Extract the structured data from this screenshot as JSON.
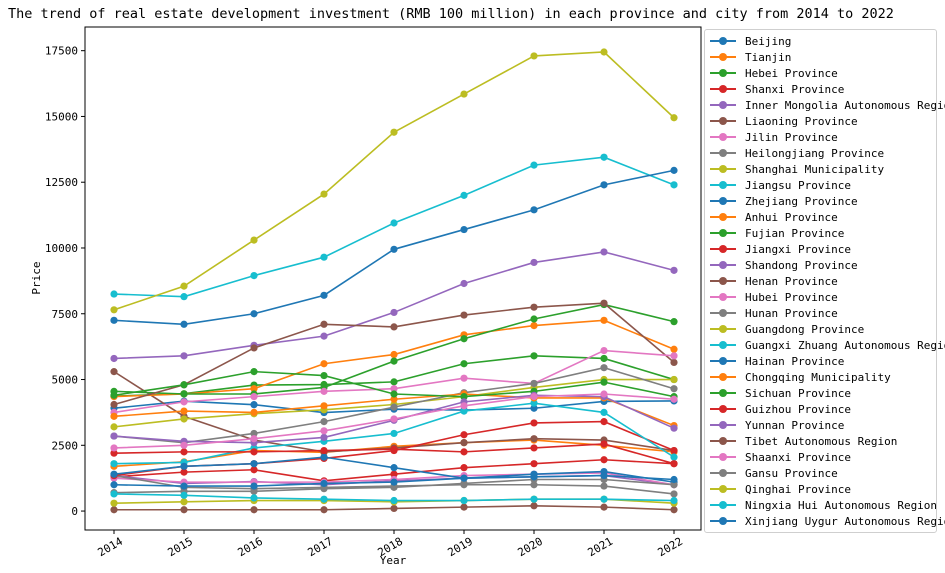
{
  "chart_data": {
    "type": "line",
    "title": "The trend of real estate development investment (RMB 100 million) in each province and city from 2014 to 2022",
    "xlabel": "Year",
    "ylabel": "Price",
    "x": [
      "2014",
      "2015",
      "2016",
      "2017",
      "2018",
      "2019",
      "2020",
      "2021",
      "2022"
    ],
    "ylim": [
      -720,
      18400
    ],
    "yticks": [
      0,
      2500,
      5000,
      7500,
      10000,
      12500,
      15000,
      17500
    ],
    "ytick_labels": [
      "0",
      "2500",
      "5000",
      "7500",
      "10000",
      "12500",
      "15000",
      "17500"
    ],
    "legend_position": "outside-right",
    "series": [
      {
        "name": "Beijing",
        "color": "#1f77b4",
        "values": [
          3911,
          4177,
          4045,
          3745,
          3873,
          3838,
          3908,
          4167,
          4186
        ]
      },
      {
        "name": "Tianjin",
        "color": "#ff7f0e",
        "values": [
          1700,
          1872,
          2300,
          2232,
          2460,
          2600,
          2700,
          2500,
          2251
        ]
      },
      {
        "name": "Hebei Province",
        "color": "#2ca02c",
        "values": [
          4370,
          4460,
          4790,
          4810,
          4910,
          5600,
          5900,
          5800,
          4999
        ]
      },
      {
        "name": "Shanxi Province",
        "color": "#d62728",
        "values": [
          1300,
          1480,
          1570,
          1150,
          1400,
          1650,
          1800,
          1950,
          1800
        ]
      },
      {
        "name": "Inner Mongolia Autonomous Region",
        "color": "#9467bd",
        "values": [
          1350,
          1050,
          1120,
          1000,
          1150,
          1250,
          1300,
          1350,
          1000
        ]
      },
      {
        "name": "Liaoning Province",
        "color": "#8c564b",
        "values": [
          5300,
          3600,
          2700,
          2250,
          2400,
          2600,
          2750,
          2700,
          2300
        ]
      },
      {
        "name": "Jilin Province",
        "color": "#e377c2",
        "values": [
          1250,
          1100,
          1100,
          1100,
          1200,
          1350,
          1400,
          1450,
          1000
        ]
      },
      {
        "name": "Heilongjiang Province",
        "color": "#7f7f7f",
        "values": [
          1350,
          900,
          850,
          900,
          950,
          1000,
          1000,
          950,
          650
        ]
      },
      {
        "name": "Shanghai Municipality",
        "color": "#bcbd22",
        "values": [
          3200,
          3500,
          3700,
          3850,
          4050,
          4350,
          4700,
          5000,
          5000
        ]
      },
      {
        "name": "Jiangsu Province",
        "color": "#17becf",
        "values": [
          8250,
          8150,
          8950,
          9650,
          10950,
          12000,
          13150,
          13450,
          12400
        ]
      },
      {
        "name": "Zhejiang Province",
        "color": "#1f77b4",
        "values": [
          7250,
          7100,
          7500,
          8200,
          9950,
          10700,
          11450,
          12400,
          12950
        ]
      },
      {
        "name": "Anhui Province",
        "color": "#ff7f0e",
        "values": [
          4350,
          4450,
          4650,
          5600,
          5950,
          6700,
          7050,
          7250,
          6150
        ]
      },
      {
        "name": "Fujian Province",
        "color": "#2ca02c",
        "values": [
          4550,
          4450,
          4450,
          4700,
          5700,
          6550,
          7300,
          7850,
          7200
        ]
      },
      {
        "name": "Jiangxi Province",
        "color": "#d62728",
        "values": [
          1350,
          1700,
          1800,
          2000,
          2300,
          2900,
          3350,
          3400,
          2300
        ]
      },
      {
        "name": "Shandong Province",
        "color": "#9467bd",
        "values": [
          5800,
          5900,
          6300,
          6650,
          7550,
          8650,
          9450,
          9850,
          9150
        ]
      },
      {
        "name": "Henan Province",
        "color": "#8c564b",
        "values": [
          4050,
          4800,
          6200,
          7100,
          7000,
          7450,
          7750,
          7900,
          5650
        ]
      },
      {
        "name": "Hubei Province",
        "color": "#e377c2",
        "values": [
          3750,
          4150,
          4350,
          4550,
          4650,
          5050,
          4850,
          6100,
          5900
        ]
      },
      {
        "name": "Hunan Province",
        "color": "#7f7f7f",
        "values": [
          2850,
          2600,
          2950,
          3400,
          3950,
          4500,
          4850,
          5450,
          4650
        ]
      },
      {
        "name": "Guangdong Province",
        "color": "#bcbd22",
        "values": [
          7650,
          8550,
          10300,
          12050,
          14400,
          15850,
          17300,
          17450,
          14950
        ]
      },
      {
        "name": "Guangxi Zhuang Autonomous Region",
        "color": "#17becf",
        "values": [
          1800,
          1850,
          2400,
          2650,
          2950,
          3800,
          4100,
          3750,
          2050
        ]
      },
      {
        "name": "Hainan Province",
        "color": "#1f77b4",
        "values": [
          1400,
          1700,
          1800,
          2050,
          1650,
          1250,
          1400,
          1500,
          1100
        ]
      },
      {
        "name": "Chongqing Municipality",
        "color": "#ff7f0e",
        "values": [
          3600,
          3800,
          3750,
          4000,
          4250,
          4450,
          4300,
          4300,
          3250
        ]
      },
      {
        "name": "Sichuan Province",
        "color": "#2ca02c",
        "values": [
          4400,
          4800,
          5300,
          5150,
          4450,
          4350,
          4550,
          4900,
          4350
        ]
      },
      {
        "name": "Guizhou Province",
        "color": "#d62728",
        "values": [
          2200,
          2250,
          2250,
          2300,
          2350,
          2250,
          2400,
          2550,
          1800
        ]
      },
      {
        "name": "Yunnan Province",
        "color": "#9467bd",
        "values": [
          2850,
          2650,
          2600,
          2800,
          3450,
          4150,
          4400,
          4350,
          3150
        ]
      },
      {
        "name": "Tibet Autonomous Region",
        "color": "#8c564b",
        "values": [
          50,
          50,
          50,
          50,
          100,
          150,
          200,
          150,
          50
        ]
      },
      {
        "name": "Shaanxi Province",
        "color": "#e377c2",
        "values": [
          2400,
          2500,
          2750,
          3050,
          3500,
          4000,
          4350,
          4450,
          4250
        ]
      },
      {
        "name": "Gansu Province",
        "color": "#7f7f7f",
        "values": [
          700,
          750,
          750,
          850,
          900,
          1050,
          1200,
          1200,
          1000
        ]
      },
      {
        "name": "Qinghai Province",
        "color": "#bcbd22",
        "values": [
          300,
          350,
          400,
          400,
          350,
          400,
          450,
          450,
          300
        ]
      },
      {
        "name": "Ningxia Hui Autonomous Region",
        "color": "#17becf",
        "values": [
          650,
          600,
          500,
          450,
          400,
          400,
          450,
          450,
          400
        ]
      },
      {
        "name": "Xinjiang Uygur Autonomous Region",
        "color": "#1f77b4",
        "values": [
          1000,
          950,
          950,
          1050,
          1100,
          1250,
          1300,
          1350,
          1200
        ]
      }
    ]
  }
}
